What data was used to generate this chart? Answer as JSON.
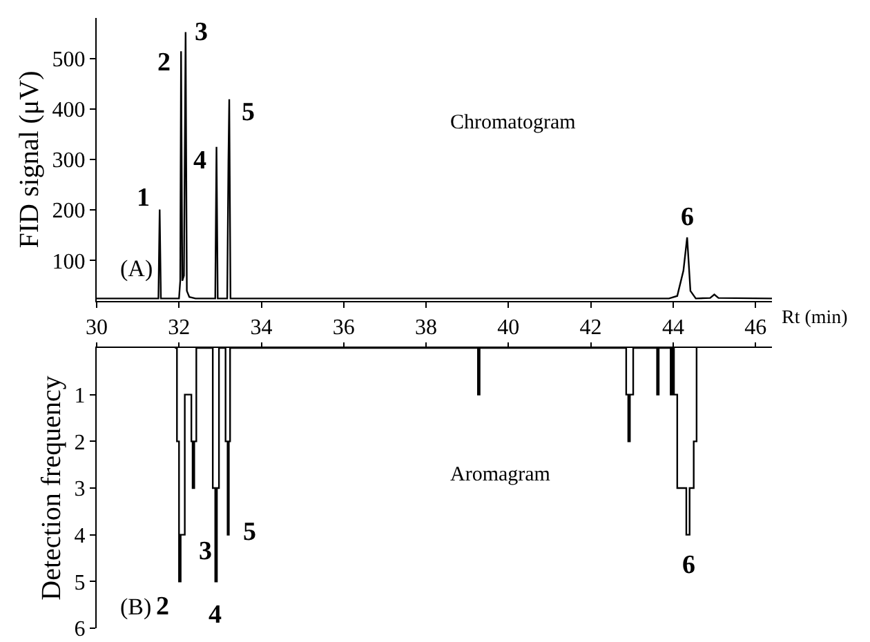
{
  "chart_data": [
    {
      "type": "line",
      "xlabel": "Rt (min)",
      "ylabel": "FID signal (μV)",
      "color": "#000000",
      "x": [
        30,
        31.5,
        31.53,
        31.56,
        32.0,
        32.03,
        32.05,
        32.08,
        32.12,
        32.16,
        32.19,
        32.25,
        32.4,
        32.88,
        32.91,
        32.94,
        33.17,
        33.2,
        33.22,
        33.25,
        43.9,
        44.1,
        44.25,
        44.34,
        44.42,
        44.55,
        44.9,
        45.0,
        45.1,
        46.4
      ],
      "values": [
        25,
        25,
        201,
        25,
        25,
        60,
        514,
        60,
        70,
        552,
        40,
        28,
        25,
        25,
        325,
        25,
        25,
        297,
        419,
        25,
        25,
        30,
        80,
        146,
        40,
        25,
        26,
        33,
        26,
        25
      ],
      "xlim": [
        30,
        46.4
      ],
      "xticks": [
        30,
        32,
        34,
        36,
        38,
        40,
        42,
        44,
        46
      ],
      "ylim": [
        20,
        580
      ],
      "yticks": [
        100,
        200,
        300,
        400,
        500
      ],
      "annotations": [
        "(A)",
        "Chromatogram",
        {
          "text": "1",
          "x": 31.53,
          "y": 201
        },
        {
          "text": "2",
          "x": 32.05,
          "y": 514
        },
        {
          "text": "3",
          "x": 32.16,
          "y": 552
        },
        {
          "text": "4",
          "x": 32.91,
          "y": 325
        },
        {
          "text": "5",
          "x": 33.22,
          "y": 419
        },
        {
          "text": "6",
          "x": 44.34,
          "y": 146
        }
      ]
    },
    {
      "type": "step",
      "ylabel": "Detection frequency",
      "color": "#000000",
      "tick_labels": "y",
      "x": [
        31.9,
        31.95,
        32.0,
        32.04,
        32.1,
        32.14,
        32.3,
        32.33,
        32.37,
        32.42,
        32.82,
        32.88,
        32.92,
        32.97,
        33.13,
        33.18,
        33.21,
        33.24,
        39.26,
        39.3,
        42.86,
        42.91,
        42.95,
        43.03,
        43.61,
        43.65,
        43.94,
        43.98,
        44.02,
        44.1,
        44.32,
        44.4,
        44.5,
        44.57
      ],
      "values": [
        0,
        2,
        5,
        4,
        4,
        1,
        2,
        3,
        2,
        0,
        3,
        5,
        3,
        0,
        2,
        4,
        2,
        0,
        1,
        0,
        1,
        2,
        1,
        0,
        1,
        0,
        1,
        0,
        1,
        3,
        4,
        3,
        2,
        0
      ],
      "xlim": [
        30,
        46.4
      ],
      "xticks": [
        30,
        32,
        34,
        36,
        38,
        40,
        42,
        44,
        46
      ],
      "ylim": [
        6,
        0
      ],
      "yticks": [
        1,
        2,
        3,
        4,
        5,
        6
      ],
      "annotations": [
        "(B)",
        "Aromagram",
        {
          "text": "2",
          "x": 32.0,
          "y": 5
        },
        {
          "text": "3",
          "x": 32.1,
          "y": 4
        },
        {
          "text": "4",
          "x": 32.88,
          "y": 5
        },
        {
          "text": "5",
          "x": 33.18,
          "y": 4
        },
        {
          "text": "6",
          "x": 44.32,
          "y": 4
        }
      ]
    }
  ]
}
